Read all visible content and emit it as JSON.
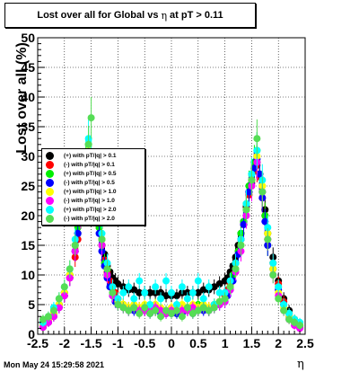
{
  "title": "Lost over all for Global vs",
  "title_symbol": "η",
  "title_suffix": "at pT > 0.11",
  "footer": "Mon May 24 15:29:58 2021",
  "chart_data": {
    "type": "scatter",
    "xlabel": "η",
    "ylabel": "Lost over all (%)",
    "xlim": [
      -2.5,
      2.5
    ],
    "ylim": [
      0,
      50
    ],
    "x_ticks": [
      "-2.5",
      "-2",
      "-1.5",
      "-1",
      "-0.5",
      "0",
      "0.5",
      "1",
      "1.5",
      "2",
      "2.5"
    ],
    "y_ticks": [
      "0",
      "5",
      "10",
      "15",
      "20",
      "25",
      "30",
      "35",
      "40",
      "45",
      "50"
    ],
    "grid": true,
    "legend_position": "left-middle",
    "series": [
      {
        "name": "(+) with pT/|q| > 0.1",
        "color": "#000000",
        "x": [
          -2.4,
          -2.3,
          -2.2,
          -2.1,
          -2.0,
          -1.9,
          -1.8,
          -1.75,
          -1.7,
          -1.65,
          -1.6,
          -1.55,
          -1.5,
          -1.45,
          -1.4,
          -1.35,
          -1.3,
          -1.25,
          -1.2,
          -1.15,
          -1.1,
          -1.05,
          -1.0,
          -0.9,
          -0.8,
          -0.7,
          -0.6,
          -0.5,
          -0.4,
          -0.3,
          -0.2,
          -0.1,
          0.0,
          0.1,
          0.2,
          0.3,
          0.4,
          0.5,
          0.6,
          0.7,
          0.8,
          0.9,
          1.0,
          1.05,
          1.1,
          1.15,
          1.2,
          1.25,
          1.3,
          1.35,
          1.4,
          1.45,
          1.5,
          1.55,
          1.6,
          1.65,
          1.7,
          1.75,
          1.8,
          1.9,
          2.0,
          2.1,
          2.2,
          2.3,
          2.4
        ],
        "y": [
          1.5,
          2.5,
          3.5,
          5,
          7,
          10,
          14,
          17,
          21,
          24,
          27,
          29,
          28,
          25,
          22,
          19,
          16,
          13.5,
          11.5,
          10.5,
          9.5,
          9,
          8.5,
          8,
          7.5,
          7.5,
          7,
          7,
          7,
          7,
          7,
          6.5,
          6.5,
          6.5,
          7,
          7,
          7,
          7,
          7.5,
          7.5,
          8,
          8.5,
          9,
          9.5,
          10.5,
          11.5,
          13,
          15,
          17,
          19,
          21.5,
          24,
          26,
          28,
          29,
          27,
          24,
          21,
          17,
          13,
          9,
          6,
          4,
          2.5,
          1.5
        ]
      },
      {
        "name": "(-) with pT/|q| > 0.1",
        "color": "#ff0000",
        "x": [
          -2.4,
          -2.3,
          -2.2,
          -2.1,
          -2.0,
          -1.9,
          -1.8,
          -1.75,
          -1.7,
          -1.65,
          -1.6,
          -1.55,
          -1.5,
          -1.45,
          -1.4,
          -1.35,
          -1.3,
          -1.25,
          -1.2,
          -1.15,
          -1.1,
          -1.05,
          -1.0,
          -0.9,
          -0.8,
          -0.7,
          -0.6,
          -0.5,
          -0.4,
          -0.3,
          -0.2,
          -0.1,
          0.0,
          0.1,
          0.2,
          0.3,
          0.4,
          0.5,
          0.6,
          0.7,
          0.8,
          0.9,
          1.0,
          1.05,
          1.1,
          1.15,
          1.2,
          1.25,
          1.3,
          1.35,
          1.4,
          1.45,
          1.5,
          1.55,
          1.6,
          1.65,
          1.7,
          1.75,
          1.8,
          1.9,
          2.0,
          2.1,
          2.2,
          2.3,
          2.4
        ],
        "y": [
          1.2,
          2,
          3,
          4.5,
          6.5,
          9.5,
          13,
          16,
          20,
          23,
          26,
          28,
          27,
          24,
          21,
          18,
          15,
          12.5,
          10.5,
          9,
          8,
          7,
          6,
          5,
          4.5,
          4.5,
          4.5,
          4,
          4,
          4,
          4,
          4,
          4,
          4,
          4,
          4,
          4,
          4.5,
          4.5,
          4.5,
          5,
          5.5,
          6.5,
          7.5,
          8.5,
          10,
          12,
          14,
          16,
          18.5,
          21,
          23.5,
          25.5,
          27.5,
          28.5,
          26.5,
          23,
          20,
          16,
          12,
          8.5,
          5.5,
          3.5,
          2,
          1.2
        ]
      },
      {
        "name": "(+) with pT/|q| > 0.5",
        "color": "#00ee00",
        "x": [
          -2.4,
          -2.3,
          -2.2,
          -2.1,
          -2.0,
          -1.9,
          -1.8,
          -1.75,
          -1.7,
          -1.65,
          -1.6,
          -1.55,
          -1.5,
          -1.45,
          -1.4,
          -1.35,
          -1.3,
          -1.25,
          -1.2,
          -1.15,
          -1.1,
          -1.05,
          -1.0,
          -0.9,
          -0.8,
          -0.7,
          -0.6,
          -0.5,
          -0.4,
          -0.3,
          -0.2,
          -0.1,
          0.0,
          0.1,
          0.2,
          0.3,
          0.4,
          0.5,
          0.6,
          0.7,
          0.8,
          0.9,
          1.0,
          1.05,
          1.1,
          1.15,
          1.2,
          1.25,
          1.3,
          1.35,
          1.4,
          1.45,
          1.5,
          1.55,
          1.6,
          1.65,
          1.7,
          1.75,
          1.8,
          1.9,
          2.0,
          2.1,
          2.2,
          2.3,
          2.4
        ],
        "y": [
          1.5,
          2.5,
          3.5,
          5,
          7,
          10,
          15,
          18,
          22,
          25,
          29,
          32,
          30,
          26,
          22,
          18,
          15,
          12,
          10,
          8,
          6.5,
          6,
          5,
          5,
          4.5,
          4.5,
          4,
          4.5,
          4,
          5,
          4,
          3.5,
          4,
          3.5,
          4,
          4.5,
          4,
          5,
          4.5,
          4,
          5,
          5.5,
          6,
          7,
          8,
          10,
          12,
          14,
          17,
          19,
          22,
          25,
          27,
          29,
          31,
          27,
          24,
          20,
          15,
          11,
          8,
          5,
          3.5,
          2.5,
          1.5
        ]
      },
      {
        "name": "(-) with pT/|q| > 0.5",
        "color": "#0000ff",
        "x": [
          -2.4,
          -2.3,
          -2.2,
          -2.1,
          -2.0,
          -1.9,
          -1.8,
          -1.75,
          -1.7,
          -1.65,
          -1.6,
          -1.55,
          -1.5,
          -1.45,
          -1.4,
          -1.35,
          -1.3,
          -1.25,
          -1.2,
          -1.15,
          -1.1,
          -1.05,
          -1.0,
          -0.9,
          -0.8,
          -0.7,
          -0.6,
          -0.5,
          -0.4,
          -0.3,
          -0.2,
          -0.1,
          0.0,
          0.1,
          0.2,
          0.3,
          0.4,
          0.5,
          0.6,
          0.7,
          0.8,
          0.9,
          1.0,
          1.05,
          1.1,
          1.15,
          1.2,
          1.25,
          1.3,
          1.35,
          1.4,
          1.45,
          1.5,
          1.55,
          1.6,
          1.65,
          1.7,
          1.75,
          1.8,
          1.9,
          2.0,
          2.1,
          2.2,
          2.3,
          2.4
        ],
        "y": [
          1.2,
          2,
          3,
          4.5,
          6.5,
          9.5,
          14,
          17,
          21,
          24,
          27,
          29,
          28,
          24,
          21,
          17,
          14,
          11.5,
          9.5,
          8,
          6.5,
          5.5,
          5,
          4.5,
          4,
          4,
          4,
          4,
          3.5,
          4,
          3.5,
          3.5,
          3.5,
          3.5,
          3.5,
          4,
          3.5,
          4,
          4,
          4,
          4.5,
          5,
          5.5,
          6.5,
          7.5,
          9,
          11,
          13.5,
          16,
          18.5,
          21,
          24,
          26,
          28,
          29.5,
          27,
          23,
          19,
          15,
          11,
          7.5,
          5,
          3,
          2,
          1.2
        ]
      },
      {
        "name": "(+) with pT/|q| > 1.0",
        "color": "#ffff00",
        "x": [
          -2.4,
          -2.3,
          -2.2,
          -2.1,
          -2.0,
          -1.9,
          -1.8,
          -1.7,
          -1.6,
          -1.55,
          -1.5,
          -1.4,
          -1.3,
          -1.2,
          -1.1,
          -1.0,
          -0.9,
          -0.8,
          -0.7,
          -0.6,
          -0.5,
          -0.4,
          -0.3,
          -0.2,
          -0.1,
          0.0,
          0.1,
          0.2,
          0.3,
          0.4,
          0.5,
          0.6,
          0.7,
          0.8,
          0.9,
          1.0,
          1.1,
          1.2,
          1.3,
          1.4,
          1.5,
          1.6,
          1.7,
          1.8,
          1.9,
          2.0,
          2.1,
          2.2,
          2.3,
          2.4
        ],
        "y": [
          1.5,
          2.5,
          3.5,
          5,
          7,
          10,
          15,
          21,
          28,
          31,
          29,
          23,
          16,
          11,
          7,
          5.5,
          5,
          4.5,
          5,
          4.5,
          5,
          4,
          5,
          4.5,
          4,
          4.5,
          4,
          5,
          4.5,
          5,
          4.5,
          5,
          4.5,
          5,
          5.5,
          6,
          8,
          11,
          15,
          21,
          26,
          30,
          25,
          17,
          11,
          7,
          4.5,
          3,
          2,
          1.5
        ]
      },
      {
        "name": "(-) with pT/|q| > 1.0",
        "color": "#ff00ff",
        "x": [
          -2.4,
          -2.3,
          -2.2,
          -2.1,
          -2.0,
          -1.9,
          -1.8,
          -1.7,
          -1.6,
          -1.55,
          -1.5,
          -1.4,
          -1.3,
          -1.2,
          -1.1,
          -1.0,
          -0.9,
          -0.8,
          -0.7,
          -0.6,
          -0.5,
          -0.4,
          -0.3,
          -0.2,
          -0.1,
          0.0,
          0.1,
          0.2,
          0.3,
          0.4,
          0.5,
          0.6,
          0.7,
          0.8,
          0.9,
          1.0,
          1.1,
          1.2,
          1.3,
          1.4,
          1.5,
          1.6,
          1.7,
          1.8,
          1.9,
          2.0,
          2.1,
          2.2,
          2.3,
          2.4
        ],
        "y": [
          1.2,
          2,
          3,
          4.5,
          6.5,
          9.5,
          14,
          20,
          27,
          30,
          28,
          22,
          15,
          10,
          6.5,
          5,
          4.5,
          4,
          4.5,
          4,
          4,
          4,
          4.5,
          4,
          3.5,
          4,
          4,
          4,
          4,
          4.5,
          4,
          4.5,
          4,
          4.5,
          5,
          5.5,
          7.5,
          10.5,
          14,
          20,
          25,
          29,
          24,
          16,
          10,
          6.5,
          4,
          2.5,
          1.5,
          1
        ]
      },
      {
        "name": "(+) with pT/|q| > 2.0",
        "color": "#00ffff",
        "x": [
          -2.4,
          -2.3,
          -2.2,
          -2.1,
          -2.0,
          -1.9,
          -1.8,
          -1.7,
          -1.6,
          -1.55,
          -1.5,
          -1.4,
          -1.3,
          -1.2,
          -1.1,
          -1.0,
          -0.9,
          -0.8,
          -0.7,
          -0.6,
          -0.5,
          -0.4,
          -0.3,
          -0.2,
          -0.1,
          0.0,
          0.1,
          0.2,
          0.3,
          0.4,
          0.5,
          0.6,
          0.7,
          0.8,
          0.9,
          1.0,
          1.1,
          1.2,
          1.3,
          1.4,
          1.5,
          1.6,
          1.7,
          1.8,
          1.9,
          2.0,
          2.1,
          2.2,
          2.3,
          2.4
        ],
        "y": [
          2,
          3,
          4.5,
          6,
          8,
          11,
          16,
          22,
          30,
          33,
          30,
          24,
          17,
          12,
          8,
          6,
          7,
          8,
          6,
          9,
          7,
          5,
          8,
          6,
          9,
          7,
          5,
          8,
          6,
          7,
          9,
          6,
          8,
          5,
          7,
          7,
          9,
          12,
          16,
          22,
          27,
          31,
          26,
          18,
          12,
          8,
          5,
          3.5,
          2.5,
          2
        ]
      },
      {
        "name": "(-) with pT/|q| > 2.0",
        "color": "#55dd55",
        "x": [
          -2.4,
          -2.3,
          -2.2,
          -2.1,
          -2.0,
          -1.9,
          -1.8,
          -1.7,
          -1.6,
          -1.55,
          -1.5,
          -1.4,
          -1.3,
          -1.2,
          -1.1,
          -1.0,
          -0.9,
          -0.8,
          -0.7,
          -0.6,
          -0.5,
          -0.4,
          -0.3,
          -0.2,
          -0.1,
          0.0,
          0.1,
          0.2,
          0.3,
          0.4,
          0.5,
          0.6,
          0.7,
          0.8,
          0.9,
          1.0,
          1.1,
          1.2,
          1.3,
          1.4,
          1.5,
          1.6,
          1.7,
          1.8,
          1.9,
          2.0,
          2.1,
          2.2,
          2.3,
          2.4
        ],
        "y": [
          2.5,
          3,
          4,
          6,
          8,
          11,
          15,
          21,
          29,
          32,
          36.5,
          23,
          16,
          11,
          7,
          5,
          4.5,
          4,
          4.5,
          3.5,
          4.5,
          3.5,
          4,
          3,
          4,
          3.5,
          4,
          3,
          4.5,
          3.5,
          4,
          4.5,
          4,
          4.5,
          5.5,
          6,
          8,
          11,
          15,
          21,
          26,
          33,
          24,
          16,
          10,
          6,
          4,
          2.5,
          2,
          1.5
        ]
      }
    ]
  }
}
